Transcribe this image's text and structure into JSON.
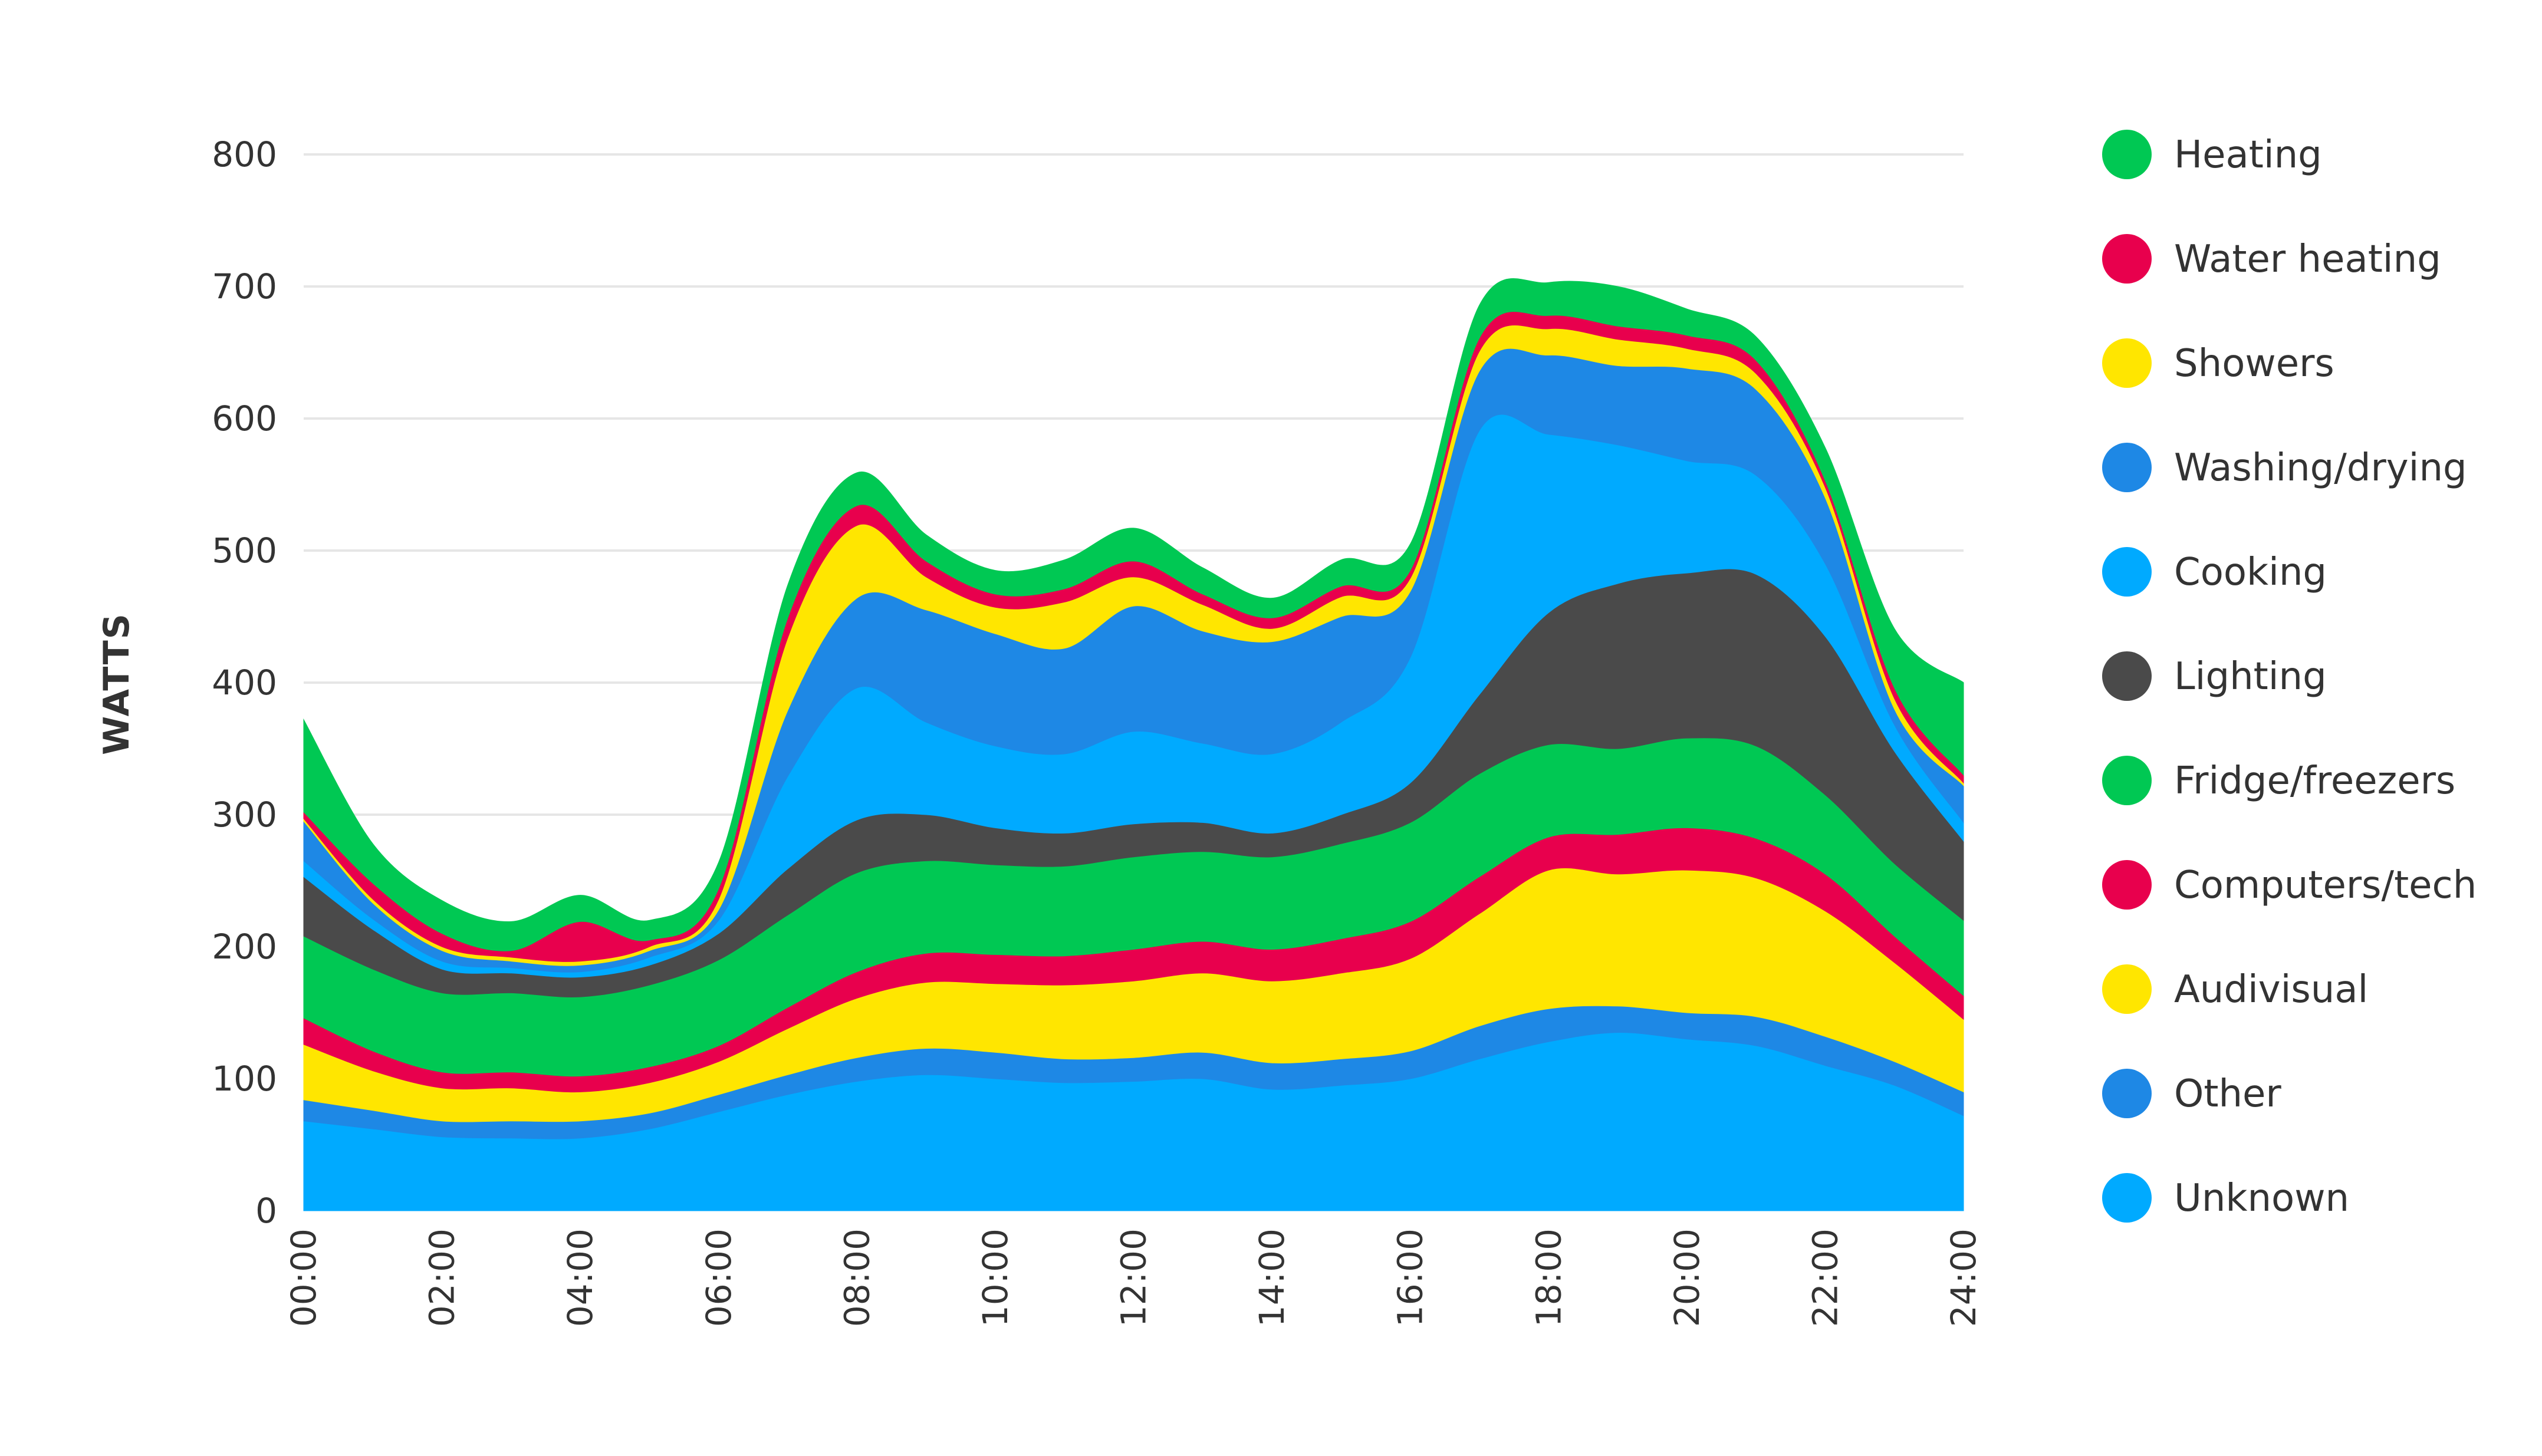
{
  "chart_data": {
    "type": "area",
    "stacked": true,
    "ylabel": "WATTS",
    "ylim": [
      0,
      800
    ],
    "yticks": [
      "0",
      "100",
      "200",
      "300",
      "400",
      "500",
      "600",
      "700",
      "800"
    ],
    "xlim": [
      0,
      24
    ],
    "xticks": [
      "00:00",
      "02:00",
      "04:00",
      "06:00",
      "08:00",
      "10:00",
      "12:00",
      "14:00",
      "16:00",
      "18:00",
      "20:00",
      "22:00",
      "24:00"
    ],
    "grid": "horizontal",
    "legend_position": "right",
    "x": [
      0,
      1,
      2,
      3,
      4,
      5,
      6,
      7,
      8,
      9,
      10,
      11,
      12,
      13,
      14,
      15,
      16,
      17,
      18,
      19,
      20,
      21,
      22,
      23,
      24
    ],
    "series": [
      {
        "name": "Unknown",
        "color": "#00aaff",
        "values": [
          68,
          62,
          56,
          55,
          55,
          62,
          75,
          88,
          98,
          103,
          100,
          97,
          98,
          100,
          92,
          95,
          100,
          115,
          128,
          135,
          130,
          125,
          110,
          95,
          72
        ]
      },
      {
        "name": "Other",
        "color": "#1e88e5",
        "values": [
          16,
          14,
          12,
          13,
          13,
          12,
          13,
          15,
          18,
          20,
          20,
          18,
          18,
          20,
          20,
          20,
          21,
          25,
          25,
          20,
          20,
          22,
          22,
          18,
          18
        ]
      },
      {
        "name": "Audivisual",
        "color": "#ffe600",
        "values": [
          42,
          30,
          25,
          25,
          22,
          23,
          25,
          35,
          45,
          50,
          52,
          56,
          58,
          60,
          62,
          65,
          70,
          85,
          105,
          100,
          108,
          105,
          95,
          75,
          55
        ]
      },
      {
        "name": "Computers/tech",
        "color": "#e8004d",
        "values": [
          20,
          15,
          12,
          12,
          12,
          12,
          12,
          16,
          20,
          22,
          22,
          22,
          24,
          24,
          24,
          26,
          28,
          28,
          25,
          30,
          32,
          30,
          28,
          20,
          18
        ]
      },
      {
        "name": "Fridge/freezers",
        "color": "#00c853",
        "values": [
          62,
          62,
          60,
          60,
          60,
          62,
          65,
          70,
          75,
          70,
          68,
          68,
          70,
          68,
          70,
          72,
          75,
          78,
          70,
          65,
          68,
          70,
          60,
          55,
          57
        ]
      },
      {
        "name": "Lighting",
        "color": "#4a4a4a",
        "values": [
          45,
          30,
          18,
          15,
          15,
          15,
          20,
          35,
          40,
          35,
          28,
          25,
          25,
          22,
          18,
          22,
          30,
          60,
          100,
          125,
          125,
          130,
          120,
          85,
          60
        ]
      },
      {
        "name": "Cooking",
        "color": "#00aaff",
        "values": [
          12,
          8,
          6,
          4,
          4,
          6,
          10,
          70,
          100,
          70,
          62,
          60,
          70,
          60,
          60,
          70,
          95,
          200,
          135,
          105,
          85,
          75,
          55,
          20,
          14
        ]
      },
      {
        "name": "Washing/drying",
        "color": "#1e88e5",
        "values": [
          30,
          12,
          8,
          5,
          5,
          5,
          8,
          50,
          68,
          85,
          85,
          80,
          95,
          85,
          85,
          80,
          50,
          45,
          60,
          60,
          70,
          65,
          50,
          12,
          28
        ]
      },
      {
        "name": "Showers",
        "color": "#ffe600",
        "values": [
          2,
          3,
          3,
          3,
          3,
          3,
          8,
          55,
          55,
          25,
          20,
          35,
          22,
          20,
          10,
          15,
          10,
          15,
          20,
          20,
          15,
          12,
          8,
          8,
          2
        ]
      },
      {
        "name": "Water heating",
        "color": "#e8004d",
        "values": [
          5,
          12,
          10,
          5,
          30,
          5,
          8,
          15,
          15,
          12,
          10,
          10,
          12,
          8,
          8,
          8,
          6,
          10,
          10,
          10,
          10,
          10,
          5,
          8,
          6
        ]
      },
      {
        "name": "Heating",
        "color": "#00c853",
        "values": [
          70,
          30,
          25,
          22,
          20,
          15,
          20,
          25,
          25,
          20,
          18,
          22,
          25,
          20,
          15,
          20,
          20,
          25,
          25,
          30,
          20,
          18,
          25,
          45,
          70
        ]
      }
    ],
    "legend": [
      {
        "label": "Heating",
        "color": "#00c853"
      },
      {
        "label": "Water heating",
        "color": "#e8004d"
      },
      {
        "label": "Showers",
        "color": "#ffe600"
      },
      {
        "label": "Washing/drying",
        "color": "#1e88e5"
      },
      {
        "label": "Cooking",
        "color": "#00aaff"
      },
      {
        "label": "Lighting",
        "color": "#4a4a4a"
      },
      {
        "label": "Fridge/freezers",
        "color": "#00c853"
      },
      {
        "label": "Computers/tech",
        "color": "#e8004d"
      },
      {
        "label": "Audivisual",
        "color": "#ffe600"
      },
      {
        "label": "Other",
        "color": "#1e88e5"
      },
      {
        "label": "Unknown",
        "color": "#00aaff"
      }
    ]
  }
}
